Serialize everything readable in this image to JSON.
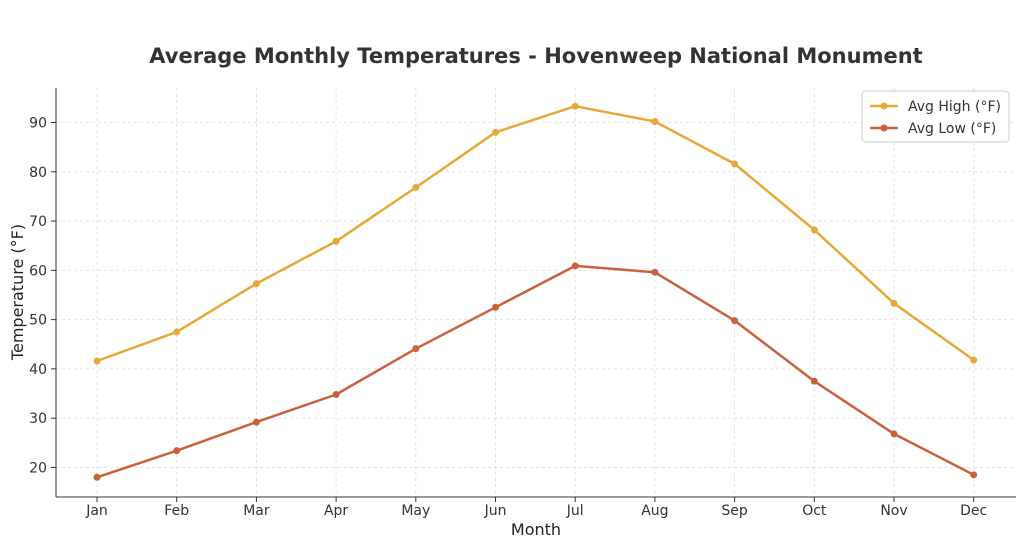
{
  "chart_data": {
    "type": "line",
    "title": "Average Monthly Temperatures - Hovenweep National Monument",
    "xlabel": "Month",
    "ylabel": "Temperature (°F)",
    "categories": [
      "Jan",
      "Feb",
      "Mar",
      "Apr",
      "May",
      "Jun",
      "Jul",
      "Aug",
      "Sep",
      "Oct",
      "Nov",
      "Dec"
    ],
    "series": [
      {
        "name": "Avg High (°F)",
        "color": "#E8A838",
        "values": [
          41.6,
          47.5,
          57.3,
          65.9,
          76.8,
          88.0,
          93.3,
          90.2,
          81.6,
          68.2,
          53.3,
          41.8
        ]
      },
      {
        "name": "Avg Low (°F)",
        "color": "#C9613C",
        "values": [
          18.0,
          23.4,
          29.2,
          34.8,
          44.1,
          52.5,
          60.9,
          59.6,
          49.8,
          37.5,
          26.8,
          18.5
        ]
      }
    ],
    "ylim": [
      14,
      97
    ],
    "yticks": [
      20,
      30,
      40,
      50,
      60,
      70,
      80,
      90
    ],
    "grid": true,
    "legend_position": "top-right"
  }
}
